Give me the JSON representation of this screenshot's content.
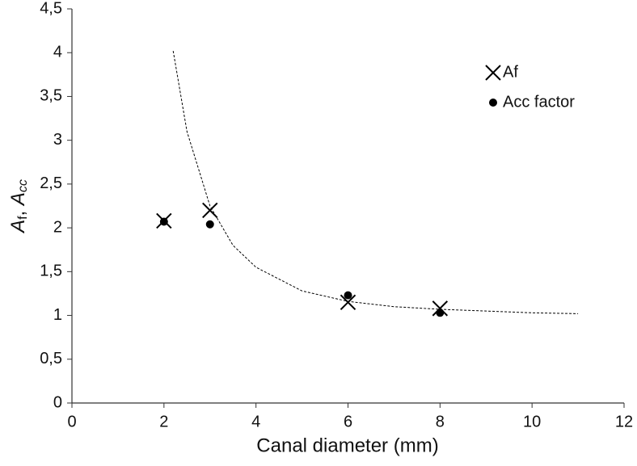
{
  "chart_data": {
    "type": "scatter",
    "xlabel": "Canal diameter (mm)",
    "ylabel": [
      "A",
      "f",
      ", ",
      "A",
      "cc"
    ],
    "xlim": [
      0,
      12
    ],
    "xticks": [
      0,
      2,
      4,
      6,
      8,
      10,
      12
    ],
    "ylim": [
      0,
      4.5
    ],
    "yticks": [
      0,
      {
        "value": 0.5,
        "label": "0,5"
      },
      1,
      {
        "value": 1.5,
        "label": "1,5"
      },
      2,
      {
        "value": 2.5,
        "label": "2,5"
      },
      3,
      {
        "value": 3.5,
        "label": "3,5"
      },
      4,
      {
        "value": 4.5,
        "label": "4,5"
      }
    ],
    "legend": "upper right",
    "series": [
      {
        "name": "Af",
        "marker": "x",
        "color": "#000000",
        "x": [
          2,
          3,
          6,
          8
        ],
        "values": [
          2.08,
          2.2,
          1.15,
          1.08
        ]
      },
      {
        "name": "Acc factor",
        "marker": "o",
        "color": "#000000",
        "x": [
          2,
          3,
          6,
          8
        ],
        "values": [
          2.07,
          2.04,
          1.23,
          1.03
        ]
      }
    ],
    "trendline": {
      "color": "#000000",
      "x": [
        2.2,
        2.5,
        3,
        3.5,
        4,
        5,
        6,
        7,
        8,
        9,
        10,
        11
      ],
      "values": [
        4.02,
        3.1,
        2.25,
        1.8,
        1.55,
        1.28,
        1.16,
        1.1,
        1.07,
        1.05,
        1.03,
        1.02
      ]
    }
  }
}
